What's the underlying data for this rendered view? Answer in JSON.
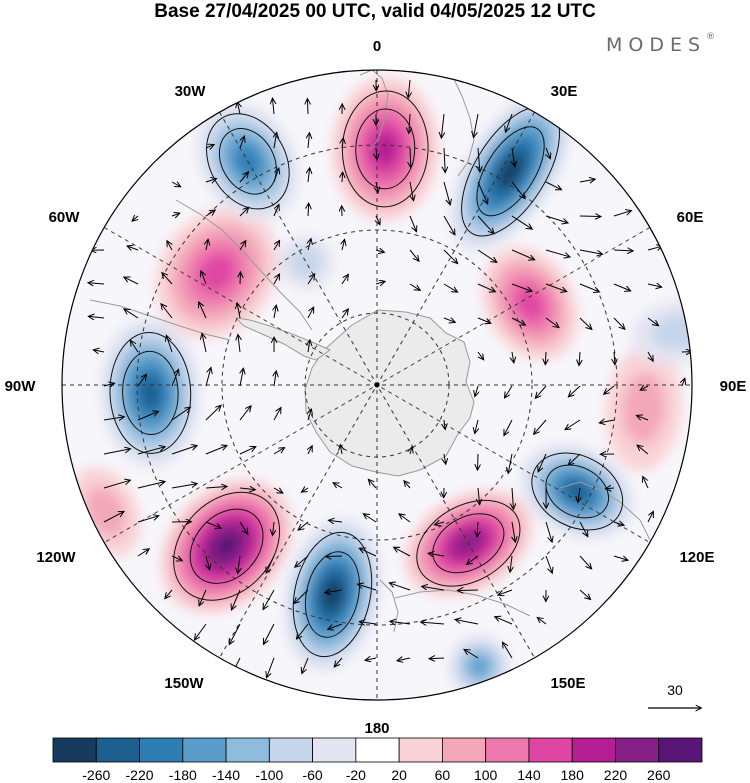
{
  "title": "Base 27/04/2025 00 UTC, valid 04/05/2025 12 UTC",
  "brand": "MODES",
  "brand_mark": "®",
  "longitude_labels": {
    "top": "0",
    "top_left": "30W",
    "top_right": "30E",
    "upper_left": "60W",
    "upper_right": "60E",
    "left": "90W",
    "right": "90E",
    "lower_left": "120W",
    "lower_right": "120E",
    "bottom_left": "150W",
    "bottom_right": "150E",
    "bottom": "180"
  },
  "vector_scale": {
    "label": "30"
  },
  "colorbar": {
    "labels": [
      "-260",
      "-220",
      "-180",
      "-140",
      "-100",
      "-60",
      "-20",
      "20",
      "60",
      "100",
      "140",
      "180",
      "220",
      "260"
    ],
    "colors": [
      "#173b5e",
      "#1d5f8f",
      "#2f7db5",
      "#5a9dca",
      "#8fbbdd",
      "#c5d5ea",
      "#e4e5f2",
      "#ffffff",
      "#f9d2d5",
      "#f3a7b9",
      "#ee78ad",
      "#df46a3",
      "#b51d94",
      "#862087",
      "#5a1677"
    ]
  },
  "map": {
    "projection": "south polar stereographic",
    "colors": {
      "antarctica": "#ebebeb",
      "coast": "#9a9a9a",
      "grid": "#333333"
    },
    "anomalies": [
      {
        "lon": 2,
        "colat": 0.75,
        "value": 210,
        "rx": 0.17,
        "ry": 0.23
      },
      {
        "lon": 32,
        "colat": 0.8,
        "value": -260,
        "rx": 0.14,
        "ry": 0.29
      },
      {
        "lon": 62,
        "colat": 0.55,
        "value": 150,
        "rx": 0.19,
        "ry": 0.14
      },
      {
        "lon": 118,
        "colat": 0.72,
        "value": -230,
        "rx": 0.14,
        "ry": 0.19
      },
      {
        "lon": 150,
        "colat": 0.58,
        "value": 225,
        "rx": 0.22,
        "ry": 0.15
      },
      {
        "lon": 160,
        "colat": 0.95,
        "value": -170,
        "rx": 0.1,
        "ry": 0.1
      },
      {
        "lon": 192,
        "colat": 0.68,
        "value": -265,
        "rx": 0.15,
        "ry": 0.25
      },
      {
        "lon": 223,
        "colat": 0.7,
        "value": 270,
        "rx": 0.18,
        "ry": 0.24
      },
      {
        "lon": 268,
        "colat": 0.72,
        "value": -250,
        "rx": 0.24,
        "ry": 0.16
      },
      {
        "lon": 305,
        "colat": 0.62,
        "value": 150,
        "rx": 0.22,
        "ry": 0.18
      },
      {
        "lon": 330,
        "colat": 0.82,
        "value": -200,
        "rx": 0.15,
        "ry": 0.2
      },
      {
        "lon": 330,
        "colat": 0.45,
        "value": -60,
        "rx": 0.09,
        "ry": 0.09
      },
      {
        "lon": 95,
        "colat": 0.85,
        "value": 70,
        "rx": 0.2,
        "ry": 0.12
      },
      {
        "lon": 245,
        "colat": 0.95,
        "value": 60,
        "rx": 0.15,
        "ry": 0.1
      },
      {
        "lon": 80,
        "colat": 0.97,
        "value": -70,
        "rx": 0.1,
        "ry": 0.15
      }
    ]
  }
}
